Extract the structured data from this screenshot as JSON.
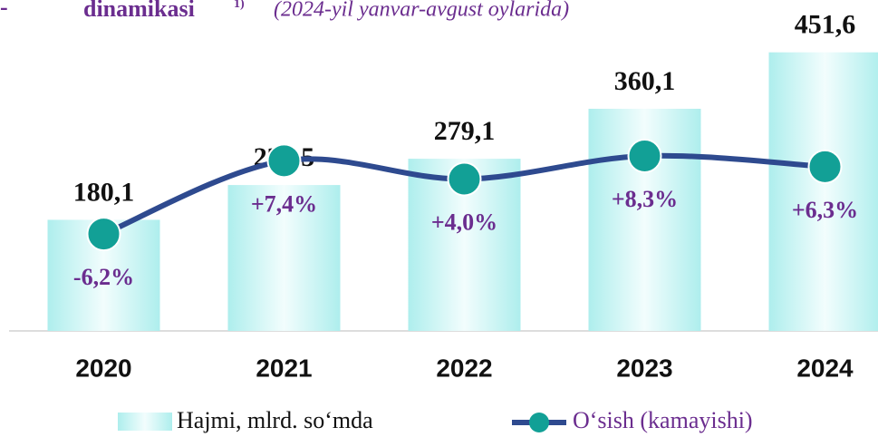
{
  "chart_data": {
    "type": "bar-line",
    "title": "dinamikasi",
    "title_note": "1)",
    "subtitle": "(2024-yil yanvar-avgust oylarida)",
    "categories": [
      "2020",
      "2021",
      "2022",
      "2023",
      "2024"
    ],
    "series": [
      {
        "name": "Hajmi, mlrd. so‘mda",
        "type": "bar",
        "color": "#aeeeed",
        "values": [
          180.1,
          236.5,
          279.1,
          360.1,
          451.6
        ],
        "value_labels": [
          "180,1",
          "236,5",
          "279,1",
          "360,1",
          "451,6"
        ]
      },
      {
        "name": "O‘sish (kamayishi)",
        "type": "line",
        "axis": "y2",
        "color": "#2e4a8f",
        "marker_color": "#12a096",
        "values": [
          -6.2,
          7.4,
          4.0,
          8.3,
          6.3
        ],
        "value_labels": [
          "-6,2%",
          "+7,4%",
          "+4,0%",
          "+8,3%",
          "+6,3%"
        ]
      }
    ],
    "ylim": [
      0,
      460
    ],
    "y2lim": [
      -20,
      12
    ]
  }
}
